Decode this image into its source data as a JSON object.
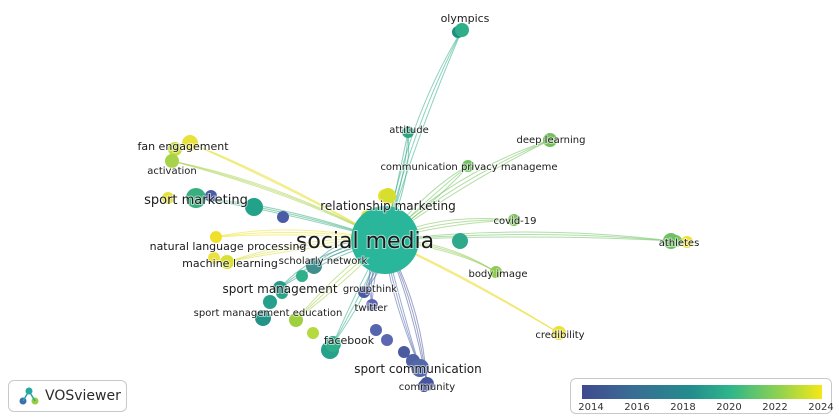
{
  "network": {
    "nodes": [
      {
        "id": "social_media",
        "label": "social media",
        "color": "#2ab69a"
      },
      {
        "id": "olympics",
        "label": "olympics",
        "color": "#2fae8a"
      },
      {
        "id": "attitude",
        "label": "attitude",
        "color": "#2ca67f"
      },
      {
        "id": "deep_learning",
        "label": "deep learning",
        "color": "#73c15a"
      },
      {
        "id": "communication_privacy_manageme",
        "label": "communication privacy manageme",
        "color": "#6fc35d"
      },
      {
        "id": "fan_engagement",
        "label": "fan engagement",
        "color": "#e8e23a"
      },
      {
        "id": "activation",
        "label": "activation",
        "color": "#a8d24a"
      },
      {
        "id": "sport_marketing",
        "label": "sport marketing",
        "color": "#39ae7f"
      },
      {
        "id": "relationship_marketing",
        "label": "relationship marketing",
        "color": "#d7df2e"
      },
      {
        "id": "covid_19",
        "label": "covid-19",
        "color": "#7cc45a"
      },
      {
        "id": "athletes",
        "label": "athletes",
        "color": "#6dc160"
      },
      {
        "id": "natural_language_processing",
        "label": "natural language processing",
        "color": "#efe12b"
      },
      {
        "id": "machine_learning",
        "label": "machine learning",
        "color": "#d9e032"
      },
      {
        "id": "scholarly_network",
        "label": "scholarly network",
        "color": "#3f8f8f"
      },
      {
        "id": "body_image",
        "label": "body image",
        "color": "#8fcb4e"
      },
      {
        "id": "sport_management",
        "label": "sport management",
        "color": "#2a9a88"
      },
      {
        "id": "groupthink",
        "label": "groupthink",
        "color": "#4a5aa3"
      },
      {
        "id": "twitter",
        "label": "twitter",
        "color": "#5a64b0"
      },
      {
        "id": "sport_management_education",
        "label": "sport management education",
        "color": "#9fd040"
      },
      {
        "id": "credibility",
        "label": "credibility",
        "color": "#ecdf36"
      },
      {
        "id": "facebook",
        "label": "facebook",
        "color": "#2fae8a"
      },
      {
        "id": "sport_communication",
        "label": "sport communication",
        "color": "#5168a9"
      },
      {
        "id": "community",
        "label": "community",
        "color": "#48579d"
      }
    ],
    "links_from_center": [
      "olympics",
      "attitude",
      "deep_learning",
      "communication_privacy_manageme",
      "fan_engagement",
      "activation",
      "sport_marketing",
      "relationship_marketing",
      "covid_19",
      "athletes",
      "natural_language_processing",
      "machine_learning",
      "scholarly_network",
      "body_image",
      "sport_management",
      "groupthink",
      "twitter",
      "sport_management_education",
      "credibility",
      "facebook",
      "sport_communication",
      "community"
    ]
  },
  "brand": {
    "name": "VOSviewer",
    "icon": "vosviewer-logo-icon"
  },
  "legend": {
    "ticks": [
      "2014",
      "2016",
      "2018",
      "2020",
      "2022",
      "2024"
    ],
    "colors": [
      "#3f4a8f",
      "#238c8d",
      "#2fb68a",
      "#8ed24f",
      "#f5e816"
    ]
  }
}
